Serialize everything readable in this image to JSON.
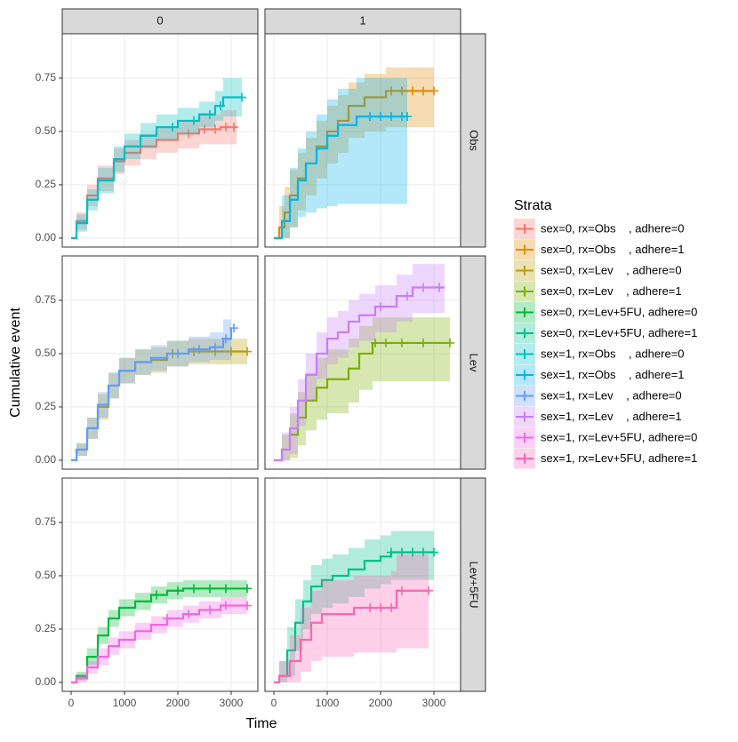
{
  "chart_data": {
    "type": "step",
    "xlabel": "Time",
    "ylabel": "Cumulative event",
    "legend_title": "Strata",
    "col_strips": [
      "0",
      "1"
    ],
    "row_strips": [
      "Obs",
      "Lev",
      "Lev+5FU"
    ],
    "xlim": [
      -167,
      3500
    ],
    "xticks": [
      0,
      1000,
      2000,
      3000
    ],
    "ylim": [
      -0.042,
      0.958
    ],
    "yticks": [
      {
        "value": 0,
        "label": "0.00"
      },
      {
        "value": 0.25,
        "label": "0.25"
      },
      {
        "value": 0.5,
        "label": "0.50"
      },
      {
        "value": 0.75,
        "label": "0.75"
      }
    ],
    "grid": true,
    "series": [
      {
        "name": "sex=0, rx=Obs    , adhere=0",
        "color": "#F8766D",
        "row": 0,
        "col": 0,
        "x": [
          0,
          100,
          300,
          500,
          800,
          1000,
          1300,
          1600,
          2000,
          2400,
          2800,
          3100
        ],
        "values": [
          0,
          0.08,
          0.2,
          0.28,
          0.36,
          0.4,
          0.43,
          0.46,
          0.49,
          0.51,
          0.52,
          0.52
        ],
        "lower": [
          0,
          0.04,
          0.15,
          0.22,
          0.3,
          0.34,
          0.37,
          0.4,
          0.42,
          0.44,
          0.44,
          0.44
        ],
        "upper": [
          0,
          0.12,
          0.25,
          0.34,
          0.42,
          0.46,
          0.49,
          0.52,
          0.55,
          0.58,
          0.6,
          0.6
        ],
        "censor": [
          2200,
          2500,
          2700,
          2900,
          3050
        ]
      },
      {
        "name": "sex=0, rx=Obs    , adhere=1",
        "color": "#DE8C00",
        "row": 0,
        "col": 1,
        "x": [
          0,
          100,
          200,
          300,
          450,
          600,
          800,
          1000,
          1200,
          1400,
          1700,
          2100,
          3000
        ],
        "values": [
          0,
          0.05,
          0.12,
          0.2,
          0.28,
          0.35,
          0.43,
          0.5,
          0.55,
          0.62,
          0.66,
          0.69,
          0.69
        ],
        "lower": [
          0,
          0,
          0,
          0.05,
          0.13,
          0.2,
          0.28,
          0.35,
          0.4,
          0.47,
          0.5,
          0.52,
          0.52
        ],
        "upper": [
          0,
          0.15,
          0.24,
          0.32,
          0.4,
          0.47,
          0.55,
          0.62,
          0.67,
          0.73,
          0.77,
          0.8,
          0.8
        ],
        "censor": [
          2200,
          2400,
          2600,
          2800,
          3000
        ]
      },
      {
        "name": "sex=0, rx=Lev    , adhere=0",
        "color": "#B79F00",
        "row": 1,
        "col": 0,
        "x": [
          0,
          100,
          300,
          500,
          700,
          900,
          1200,
          1500,
          1800,
          2200,
          2600,
          3300
        ],
        "values": [
          0,
          0.05,
          0.15,
          0.25,
          0.35,
          0.42,
          0.46,
          0.47,
          0.5,
          0.51,
          0.51,
          0.51
        ],
        "lower": [
          0,
          0.02,
          0.1,
          0.19,
          0.29,
          0.36,
          0.4,
          0.41,
          0.44,
          0.45,
          0.45,
          0.45
        ],
        "upper": [
          0,
          0.08,
          0.2,
          0.31,
          0.41,
          0.48,
          0.52,
          0.53,
          0.56,
          0.57,
          0.57,
          0.57
        ],
        "censor": [
          1900,
          2300,
          2700,
          3000,
          3300
        ]
      },
      {
        "name": "sex=0, rx=Lev    , adhere=1",
        "color": "#7CAE00",
        "row": 1,
        "col": 1,
        "x": [
          0,
          150,
          300,
          450,
          600,
          800,
          1000,
          1200,
          1400,
          1600,
          1850,
          3300
        ],
        "values": [
          0,
          0.05,
          0.12,
          0.2,
          0.28,
          0.34,
          0.38,
          0.38,
          0.43,
          0.5,
          0.55,
          0.55
        ],
        "lower": [
          0,
          0,
          0.01,
          0.07,
          0.14,
          0.19,
          0.22,
          0.22,
          0.27,
          0.33,
          0.37,
          0.37
        ],
        "upper": [
          0,
          0.12,
          0.22,
          0.32,
          0.41,
          0.48,
          0.52,
          0.52,
          0.57,
          0.63,
          0.67,
          0.67
        ],
        "censor": [
          1900,
          2100,
          2400,
          2800,
          3300
        ]
      },
      {
        "name": "sex=0, rx=Lev+5FU, adhere=0",
        "color": "#00BA38",
        "row": 2,
        "col": 0,
        "x": [
          0,
          100,
          300,
          500,
          700,
          900,
          1200,
          1500,
          1800,
          2100,
          2500,
          3300
        ],
        "values": [
          0,
          0.03,
          0.12,
          0.22,
          0.3,
          0.35,
          0.38,
          0.41,
          0.43,
          0.44,
          0.44,
          0.44
        ],
        "lower": [
          0,
          0.01,
          0.08,
          0.18,
          0.26,
          0.31,
          0.34,
          0.37,
          0.39,
          0.4,
          0.4,
          0.4
        ],
        "upper": [
          0,
          0.05,
          0.16,
          0.26,
          0.34,
          0.39,
          0.42,
          0.45,
          0.47,
          0.48,
          0.48,
          0.48
        ],
        "censor": [
          1600,
          2000,
          2300,
          2600,
          2900,
          3300
        ]
      },
      {
        "name": "sex=0, rx=Lev+5FU, adhere=1",
        "color": "#00C08B",
        "row": 2,
        "col": 1,
        "x": [
          0,
          100,
          250,
          400,
          550,
          700,
          900,
          1100,
          1400,
          1700,
          2000,
          2200,
          3000
        ],
        "values": [
          0,
          0.03,
          0.15,
          0.28,
          0.38,
          0.45,
          0.48,
          0.5,
          0.53,
          0.57,
          0.59,
          0.61,
          0.61
        ],
        "lower": [
          0,
          0,
          0.03,
          0.15,
          0.25,
          0.32,
          0.35,
          0.37,
          0.4,
          0.44,
          0.46,
          0.48,
          0.48
        ],
        "upper": [
          0,
          0.1,
          0.26,
          0.39,
          0.48,
          0.55,
          0.58,
          0.6,
          0.63,
          0.67,
          0.69,
          0.71,
          0.71
        ],
        "censor": [
          2200,
          2400,
          2600,
          2800,
          3000
        ]
      },
      {
        "name": "sex=1, rx=Obs    , adhere=0",
        "color": "#00BFC4",
        "row": 0,
        "col": 0,
        "x": [
          0,
          100,
          300,
          500,
          800,
          1000,
          1300,
          1600,
          2000,
          2400,
          2700,
          2850,
          3200
        ],
        "values": [
          0,
          0.07,
          0.18,
          0.27,
          0.37,
          0.43,
          0.48,
          0.52,
          0.55,
          0.58,
          0.62,
          0.66,
          0.66
        ],
        "lower": [
          0,
          0.03,
          0.13,
          0.21,
          0.31,
          0.37,
          0.42,
          0.46,
          0.49,
          0.52,
          0.55,
          0.57,
          0.57
        ],
        "upper": [
          0,
          0.11,
          0.23,
          0.33,
          0.43,
          0.49,
          0.54,
          0.58,
          0.61,
          0.64,
          0.69,
          0.75,
          0.75
        ],
        "censor": [
          1900,
          2300,
          2600,
          2800,
          3200
        ]
      },
      {
        "name": "sex=1, rx=Obs    , adhere=1",
        "color": "#00B4F0",
        "row": 0,
        "col": 1,
        "x": [
          0,
          150,
          300,
          450,
          600,
          800,
          1000,
          1200,
          1400,
          1550,
          2500
        ],
        "values": [
          0,
          0.08,
          0.18,
          0.27,
          0.35,
          0.42,
          0.48,
          0.53,
          0.53,
          0.57,
          0.57
        ],
        "lower": [
          0,
          0,
          0.05,
          0.1,
          0.12,
          0.14,
          0.15,
          0.16,
          0.16,
          0.16,
          0.16
        ],
        "upper": [
          0,
          0.2,
          0.33,
          0.42,
          0.5,
          0.58,
          0.65,
          0.7,
          0.7,
          0.75,
          0.75
        ],
        "censor": [
          1800,
          2000,
          2200,
          2400,
          2500
        ]
      },
      {
        "name": "sex=1, rx=Lev    , adhere=0",
        "color": "#619CFF",
        "row": 1,
        "col": 0,
        "x": [
          0,
          100,
          300,
          500,
          700,
          900,
          1200,
          1500,
          1800,
          2200,
          2600,
          2850,
          3000
        ],
        "values": [
          0,
          0.05,
          0.15,
          0.26,
          0.35,
          0.42,
          0.46,
          0.48,
          0.5,
          0.52,
          0.53,
          0.57,
          0.62
        ],
        "lower": [
          0,
          0.02,
          0.1,
          0.2,
          0.29,
          0.36,
          0.4,
          0.42,
          0.44,
          0.46,
          0.47,
          0.47,
          0.47
        ],
        "upper": [
          0,
          0.08,
          0.2,
          0.32,
          0.41,
          0.48,
          0.52,
          0.54,
          0.56,
          0.58,
          0.6,
          0.66,
          0.72
        ],
        "censor": [
          2000,
          2400,
          2700,
          2900,
          3050
        ]
      },
      {
        "name": "sex=1, rx=Lev    , adhere=1",
        "color": "#C77CFF",
        "row": 1,
        "col": 1,
        "x": [
          0,
          150,
          300,
          450,
          600,
          800,
          1000,
          1200,
          1400,
          1600,
          1900,
          2300,
          2600,
          3200
        ],
        "values": [
          0,
          0.05,
          0.15,
          0.28,
          0.4,
          0.5,
          0.57,
          0.6,
          0.65,
          0.68,
          0.72,
          0.77,
          0.81,
          0.81
        ],
        "lower": [
          0,
          0,
          0.03,
          0.16,
          0.28,
          0.38,
          0.45,
          0.48,
          0.53,
          0.56,
          0.6,
          0.65,
          0.69,
          0.69
        ],
        "upper": [
          0,
          0.13,
          0.25,
          0.38,
          0.5,
          0.6,
          0.67,
          0.7,
          0.75,
          0.78,
          0.82,
          0.87,
          0.92,
          0.92
        ],
        "censor": [
          2000,
          2500,
          2800,
          3100
        ]
      },
      {
        "name": "sex=1, rx=Lev+5FU, adhere=0",
        "color": "#F564E3",
        "row": 2,
        "col": 0,
        "x": [
          0,
          100,
          300,
          500,
          700,
          900,
          1200,
          1500,
          1800,
          2100,
          2400,
          2800,
          3300
        ],
        "values": [
          0,
          0.02,
          0.07,
          0.12,
          0.17,
          0.2,
          0.24,
          0.27,
          0.3,
          0.32,
          0.34,
          0.36,
          0.36
        ],
        "lower": [
          0,
          0,
          0.04,
          0.08,
          0.13,
          0.16,
          0.2,
          0.23,
          0.26,
          0.28,
          0.3,
          0.32,
          0.32
        ],
        "upper": [
          0,
          0.04,
          0.1,
          0.16,
          0.21,
          0.24,
          0.28,
          0.31,
          0.34,
          0.36,
          0.38,
          0.4,
          0.4
        ],
        "censor": [
          1800,
          2200,
          2600,
          2900,
          3300
        ]
      },
      {
        "name": "sex=1, rx=Lev+5FU, adhere=1",
        "color": "#FF64B0",
        "row": 2,
        "col": 1,
        "x": [
          0,
          100,
          300,
          500,
          700,
          900,
          1500,
          2000,
          2200,
          2300,
          2900
        ],
        "values": [
          0,
          0.03,
          0.1,
          0.2,
          0.28,
          0.32,
          0.35,
          0.35,
          0.35,
          0.43,
          0.43
        ],
        "lower": [
          0,
          0,
          0,
          0.05,
          0.1,
          0.12,
          0.14,
          0.14,
          0.14,
          0.16,
          0.16
        ],
        "upper": [
          0,
          0.1,
          0.22,
          0.35,
          0.43,
          0.48,
          0.5,
          0.5,
          0.52,
          0.6,
          0.6
        ],
        "censor": [
          1800,
          2000,
          2200,
          2400,
          2900
        ]
      }
    ]
  }
}
